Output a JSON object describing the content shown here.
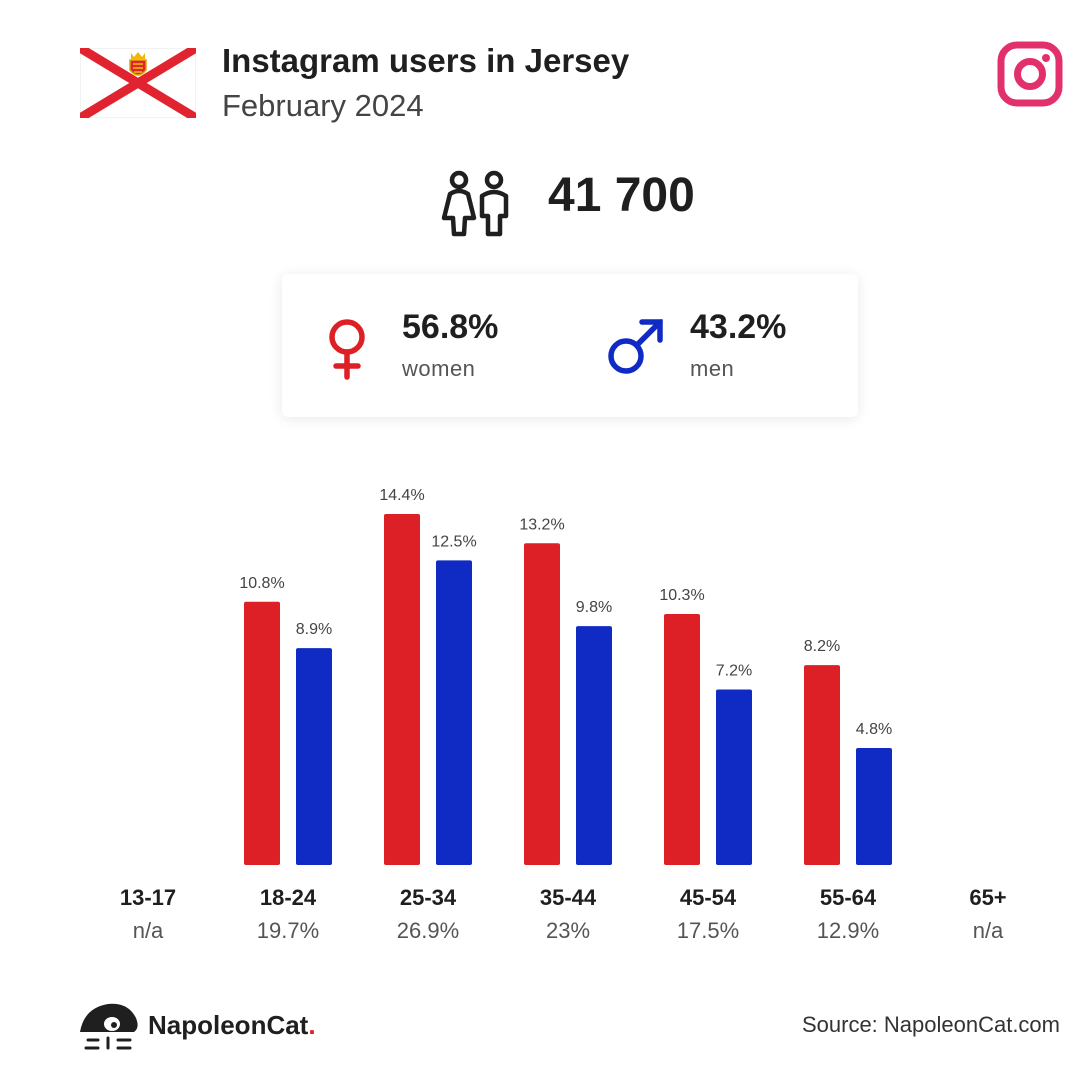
{
  "header": {
    "title": "Instagram users in Jersey",
    "subtitle": "February 2024",
    "flag_icon": "jersey-flag-icon",
    "platform_icon": "instagram-icon",
    "colors": {
      "flag_red": "#e1232f",
      "instagram": "#e1306c"
    }
  },
  "summary": {
    "total_users": "41 700",
    "icon": "users-icon"
  },
  "gender": {
    "women": {
      "pct": "56.8%",
      "label": "women",
      "icon": "female-icon",
      "color": "#dd1f26"
    },
    "men": {
      "pct": "43.2%",
      "label": "men",
      "icon": "male-icon",
      "color": "#0f2bc4"
    }
  },
  "chart_data": {
    "type": "bar",
    "categories": [
      "13-17",
      "18-24",
      "25-34",
      "35-44",
      "45-54",
      "55-64",
      "65+"
    ],
    "category_totals": [
      "n/a",
      "19.7%",
      "26.9%",
      "23%",
      "17.5%",
      "12.9%",
      "n/a"
    ],
    "series": [
      {
        "color": "#dd1f26",
        "values": [
          null,
          10.8,
          14.4,
          13.2,
          10.3,
          8.2,
          null
        ],
        "labels": [
          "",
          "10.8%",
          "14.4%",
          "13.2%",
          "10.3%",
          "8.2%",
          ""
        ]
      },
      {
        "color": "#0f2bc4",
        "values": [
          null,
          8.9,
          12.5,
          9.8,
          7.2,
          4.8,
          null
        ],
        "labels": [
          "",
          "8.9%",
          "12.5%",
          "9.8%",
          "7.2%",
          "4.8%",
          ""
        ]
      }
    ],
    "ylim": [
      0,
      14.4
    ],
    "grid": false,
    "legend": "none"
  },
  "footer": {
    "brand_name": "NapoleonCat",
    "brand_dot": ".",
    "brand_icon": "napoleoncat-logo-icon",
    "source": "Source: NapoleonCat.com"
  }
}
